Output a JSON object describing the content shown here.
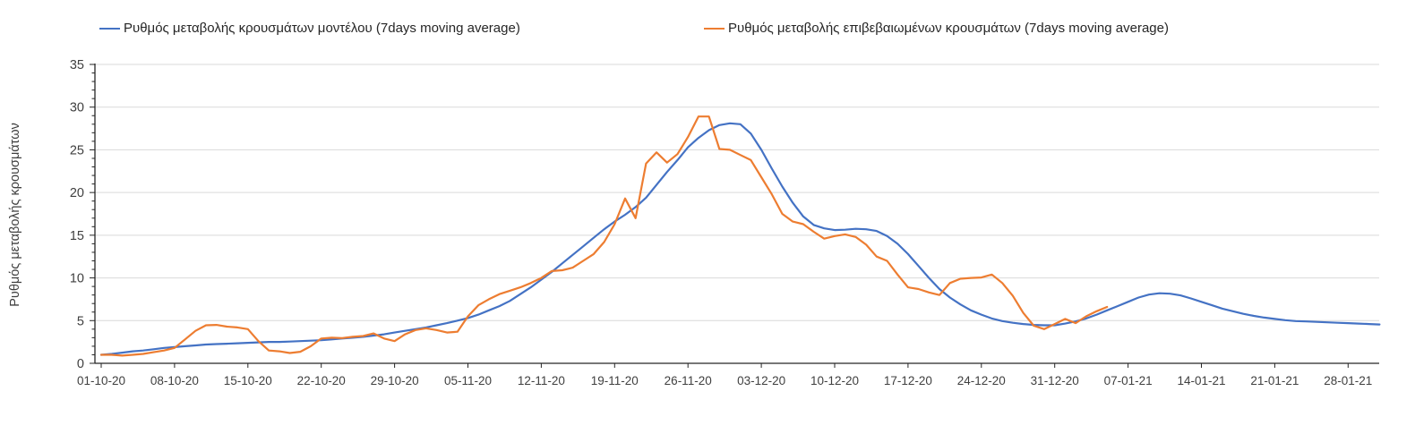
{
  "chart_data": {
    "type": "line",
    "title": "",
    "xlabel": "",
    "ylabel": "Ρυθμός μεταβολής κρουσμάτων",
    "ylim": [
      0,
      35
    ],
    "y_major_ticks": [
      0,
      5,
      10,
      15,
      20,
      25,
      30,
      35
    ],
    "y_minor_tick_step": 1,
    "grid": "horizontal-major-only",
    "legend_position": "top",
    "x_start_date": "01-10-20",
    "x_tick_interval_days": 7,
    "x_tick_labels": [
      "01-10-20",
      "08-10-20",
      "15-10-20",
      "22-10-20",
      "29-10-20",
      "05-11-20",
      "12-11-20",
      "19-11-20",
      "26-11-20",
      "03-12-20",
      "10-12-20",
      "17-12-20",
      "24-12-20",
      "31-12-20",
      "07-01-21",
      "14-01-21",
      "21-01-21",
      "28-01-21"
    ],
    "axis_color": "#262626",
    "gridline_color": "#d9d9d9",
    "tick_label_color": "#404040",
    "series": [
      {
        "name": "Ρυθμός μεταβολής κρουσμάτων μοντέλου (7days moving average)",
        "color": "#4472C4",
        "start_day": 0,
        "values": [
          1.0,
          1.1,
          1.25,
          1.4,
          1.5,
          1.65,
          1.8,
          1.9,
          2.0,
          2.1,
          2.2,
          2.25,
          2.3,
          2.35,
          2.4,
          2.45,
          2.5,
          2.5,
          2.55,
          2.6,
          2.65,
          2.7,
          2.8,
          2.9,
          3.0,
          3.1,
          3.25,
          3.4,
          3.6,
          3.8,
          4.0,
          4.2,
          4.45,
          4.7,
          5.0,
          5.3,
          5.7,
          6.2,
          6.7,
          7.3,
          8.1,
          8.9,
          9.8,
          10.7,
          11.7,
          12.7,
          13.7,
          14.7,
          15.7,
          16.6,
          17.4,
          18.3,
          19.4,
          20.9,
          22.4,
          23.8,
          25.3,
          26.4,
          27.3,
          27.9,
          28.1,
          28.0,
          26.9,
          25.0,
          22.8,
          20.7,
          18.8,
          17.2,
          16.2,
          15.8,
          15.6,
          15.65,
          15.75,
          15.7,
          15.5,
          14.9,
          14.0,
          12.8,
          11.4,
          10.0,
          8.7,
          7.7,
          6.9,
          6.2,
          5.7,
          5.25,
          4.95,
          4.75,
          4.6,
          4.5,
          4.45,
          4.45,
          4.65,
          4.9,
          5.25,
          5.7,
          6.2,
          6.7,
          7.2,
          7.7,
          8.05,
          8.2,
          8.15,
          7.95,
          7.6,
          7.2,
          6.8,
          6.4,
          6.1,
          5.8,
          5.55,
          5.35,
          5.2,
          5.05,
          4.95,
          4.9,
          4.85,
          4.8,
          4.75,
          4.7,
          4.65,
          4.6,
          4.55
        ]
      },
      {
        "name": "Ρυθμός μεταβολής επιβεβαιωμένων κρουσμάτων (7days moving average)",
        "color": "#ED7D31",
        "start_day": 0,
        "values": [
          1.0,
          1.0,
          0.9,
          1.0,
          1.1,
          1.3,
          1.5,
          1.8,
          2.8,
          3.8,
          4.45,
          4.5,
          4.3,
          4.2,
          4.0,
          2.6,
          1.5,
          1.4,
          1.2,
          1.35,
          2.0,
          2.9,
          3.0,
          2.95,
          3.1,
          3.2,
          3.5,
          2.9,
          2.6,
          3.4,
          3.9,
          4.1,
          3.9,
          3.6,
          3.7,
          5.5,
          6.8,
          7.5,
          8.1,
          8.5,
          8.9,
          9.4,
          10.0,
          10.8,
          10.9,
          11.2,
          12.0,
          12.8,
          14.2,
          16.3,
          19.3,
          17.0,
          23.4,
          24.7,
          23.5,
          24.5,
          26.5,
          28.9,
          28.9,
          25.1,
          25.0,
          24.4,
          23.8,
          21.8,
          19.8,
          17.5,
          16.6,
          16.3,
          15.4,
          14.6,
          14.9,
          15.1,
          14.8,
          13.9,
          12.5,
          12.0,
          10.4,
          8.9,
          8.7,
          8.3,
          8.0,
          9.4,
          9.9,
          10.0,
          10.05,
          10.4,
          9.4,
          7.9,
          5.9,
          4.4,
          4.0,
          4.6,
          5.2,
          4.7,
          5.5,
          6.1,
          6.6
        ]
      }
    ]
  }
}
